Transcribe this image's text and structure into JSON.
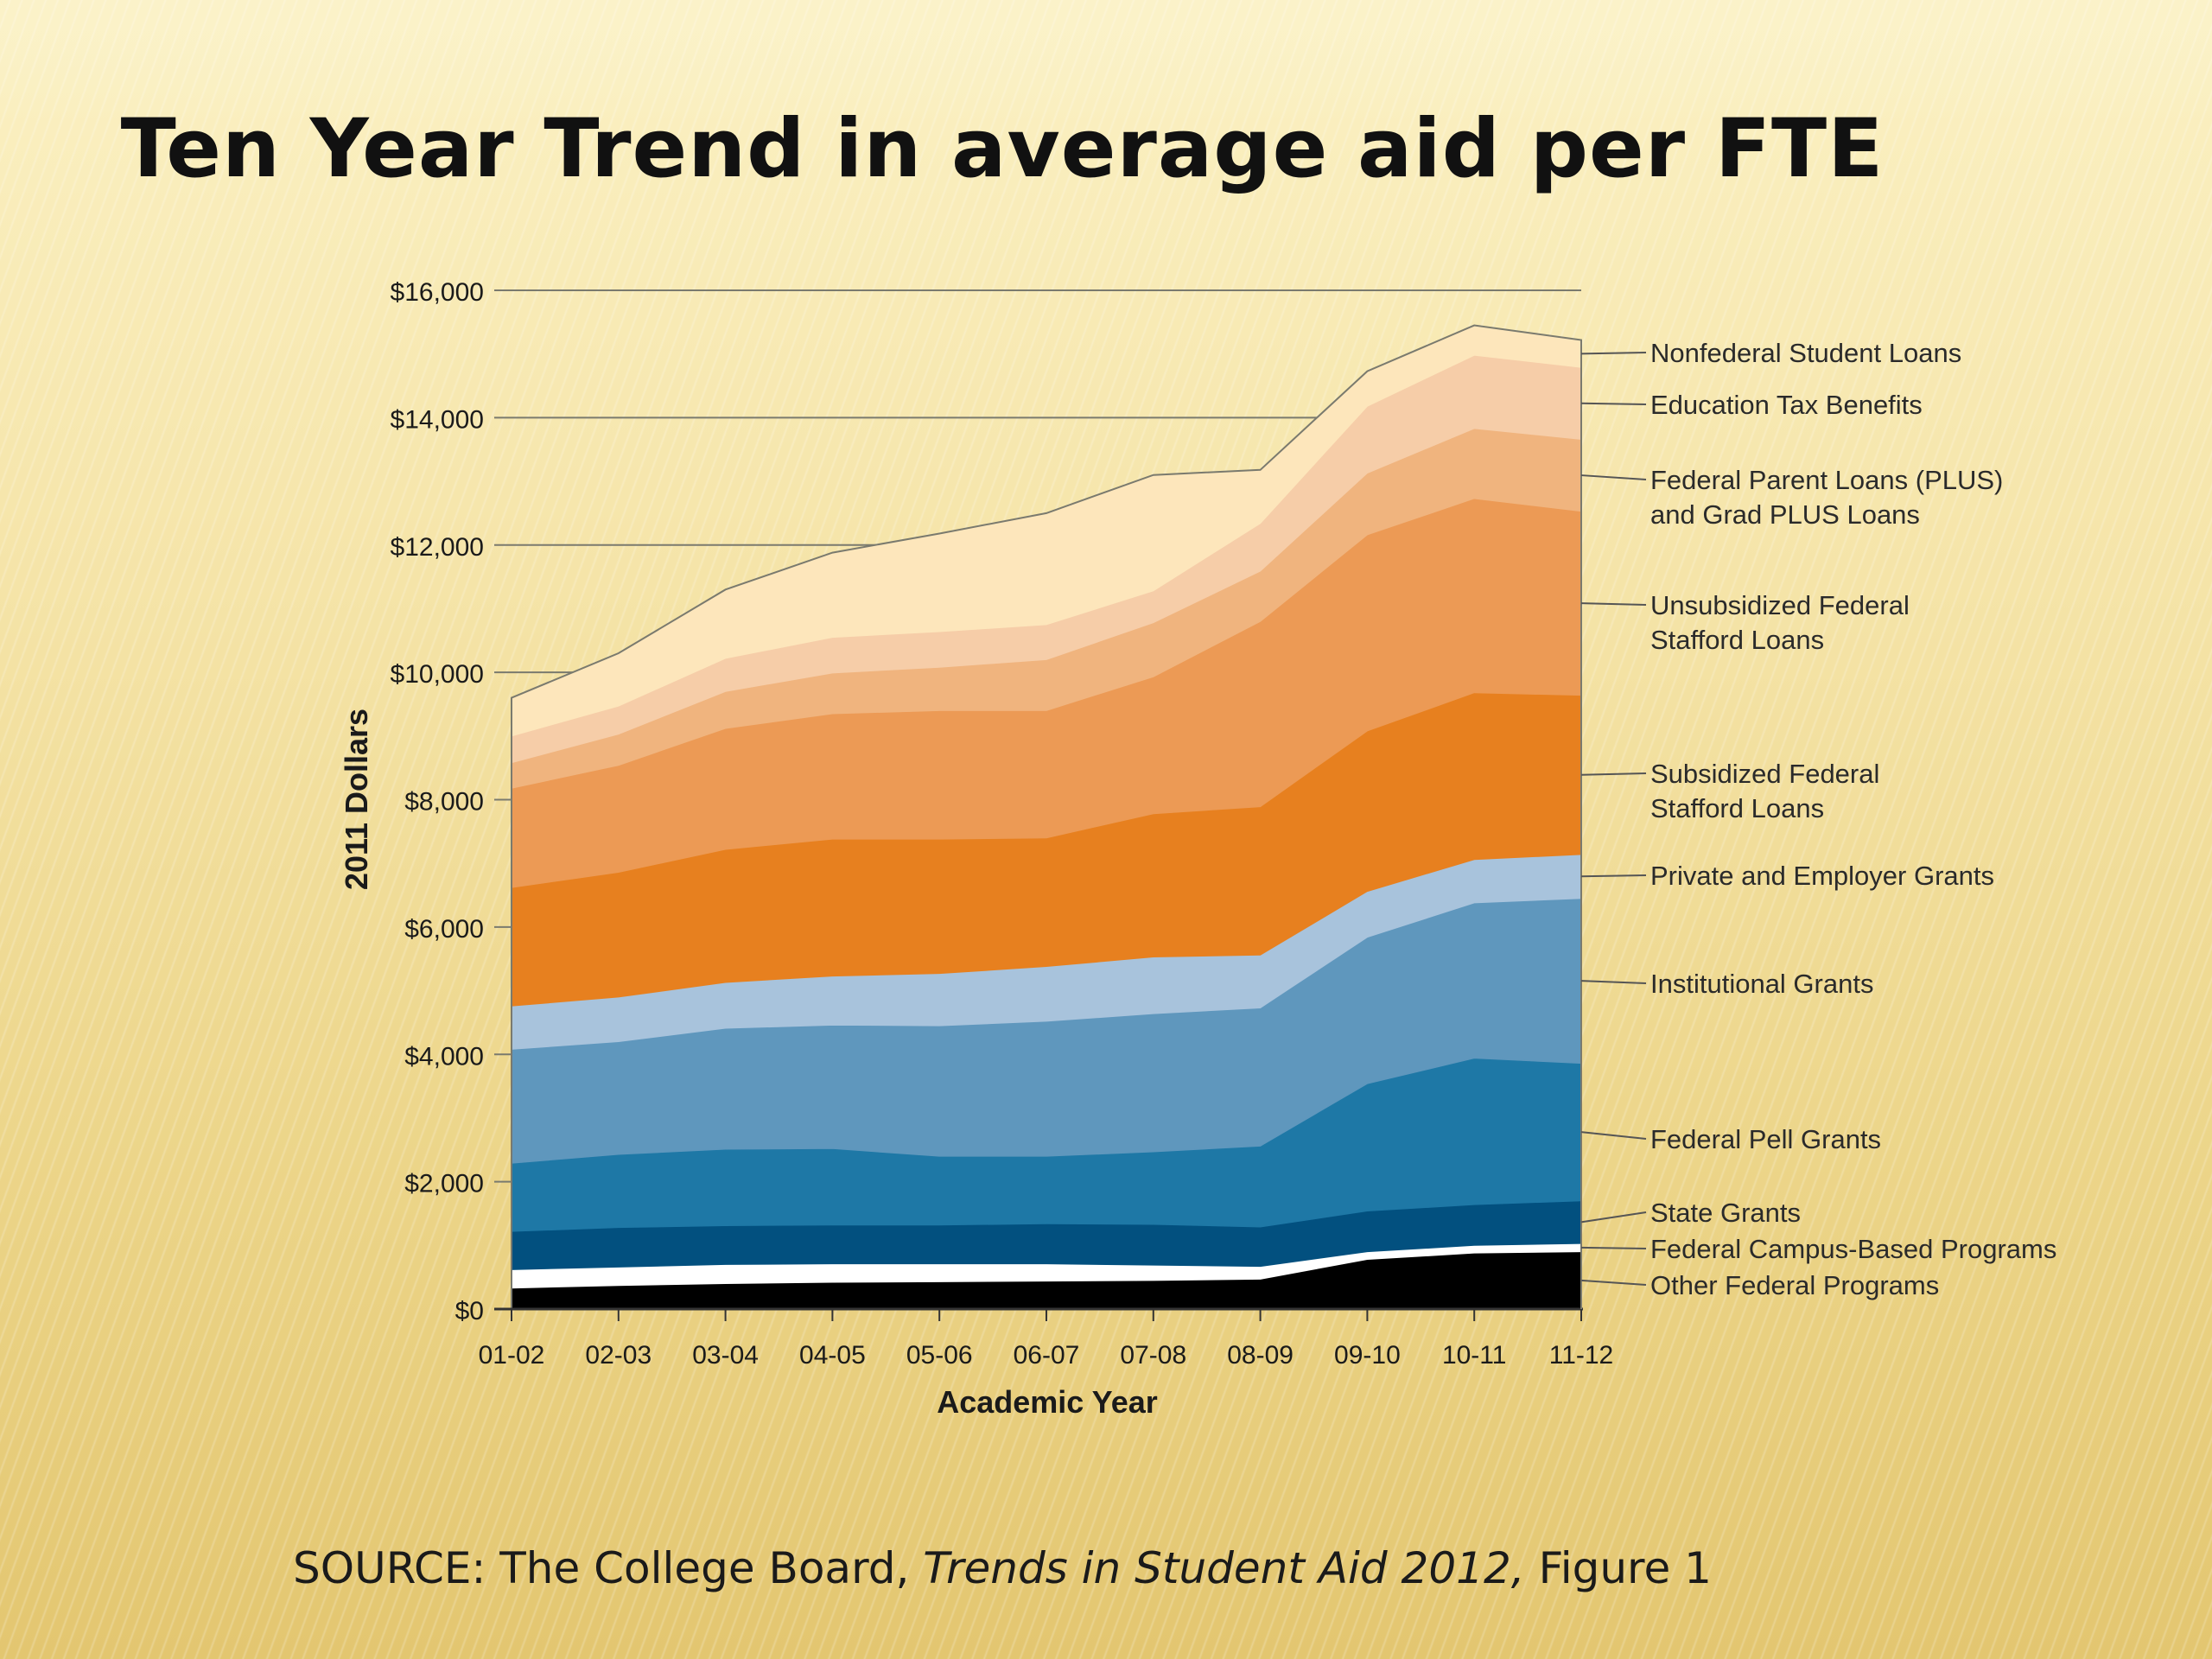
{
  "slide": {
    "title": "Ten Year Trend in average aid per FTE",
    "source_prefix": "SOURCE: The College Board, ",
    "source_italic": "Trends in Student Aid 2012,",
    "source_suffix": " Figure 1"
  },
  "chart_data": {
    "type": "area",
    "stacked": true,
    "x": [
      "01-02",
      "02-03",
      "03-04",
      "04-05",
      "05-06",
      "06-07",
      "07-08",
      "08-09",
      "09-10",
      "10-11",
      "11-12"
    ],
    "xlabel": "Academic Year",
    "ylabel": "2011 Dollars",
    "ylim": [
      0,
      16000
    ],
    "yticks": [
      0,
      2000,
      4000,
      6000,
      8000,
      10000,
      12000,
      14000,
      16000
    ],
    "ytick_labels": [
      "$0",
      "$2,000",
      "$4,000",
      "$6,000",
      "$8,000",
      "$10,000",
      "$12,000",
      "$14,000",
      "$16,000"
    ],
    "grid": "horizontal",
    "legend_placement": "right",
    "series": [
      {
        "name": "Other Federal Programs",
        "label_lines": [
          "Other Federal Programs"
        ],
        "color": "#000000",
        "values": [
          330,
          370,
          400,
          420,
          430,
          440,
          450,
          470,
          780,
          880,
          900
        ]
      },
      {
        "name": "Federal Campus-Based Programs",
        "label_lines": [
          "Federal Campus-Based Programs"
        ],
        "color": "#ffffff",
        "values": [
          290,
          290,
          300,
          290,
          280,
          270,
          240,
          200,
          120,
          120,
          130
        ]
      },
      {
        "name": "State Grants",
        "label_lines": [
          "State Grants"
        ],
        "color": "#02507f",
        "values": [
          600,
          620,
          610,
          610,
          610,
          630,
          640,
          620,
          640,
          640,
          670
        ]
      },
      {
        "name": "Federal Pell Grants",
        "label_lines": [
          "Federal Pell Grants"
        ],
        "color": "#1e78a6",
        "values": [
          1070,
          1150,
          1200,
          1200,
          1080,
          1060,
          1140,
          1270,
          2000,
          2300,
          2160
        ]
      },
      {
        "name": "Institutional Grants",
        "label_lines": [
          "Institutional Grants"
        ],
        "color": "#5f97bd",
        "values": [
          1790,
          1770,
          1900,
          1940,
          2050,
          2120,
          2170,
          2170,
          2300,
          2440,
          2590
        ]
      },
      {
        "name": "Private and Employer Grants",
        "label_lines": [
          "Private and Employer Grants"
        ],
        "color": "#a8c3dc",
        "values": [
          680,
          700,
          720,
          770,
          820,
          860,
          890,
          830,
          720,
          680,
          690
        ]
      },
      {
        "name": "Subsidized Federal Stafford Loans",
        "label_lines": [
          "Subsidized Federal",
          "Stafford Loans"
        ],
        "color": "#e7801f",
        "values": [
          1860,
          1960,
          2090,
          2150,
          2110,
          2020,
          2250,
          2330,
          2520,
          2620,
          2500
        ]
      },
      {
        "name": "Unsubsidized Federal Stafford Loans",
        "label_lines": [
          "Unsubsidized Federal",
          "Stafford Loans"
        ],
        "color": "#ec9a55",
        "values": [
          1560,
          1680,
          1900,
          1970,
          2020,
          2000,
          2150,
          2910,
          3080,
          3050,
          2890
        ]
      },
      {
        "name": "Federal Parent Loans (PLUS) and Grad PLUS Loans",
        "label_lines": [
          "Federal Parent Loans (PLUS)",
          "and Grad PLUS Loans"
        ],
        "color": "#f0b47e",
        "values": [
          400,
          490,
          580,
          640,
          680,
          800,
          850,
          790,
          970,
          1100,
          1130
        ]
      },
      {
        "name": "Education Tax Benefits",
        "label_lines": [
          "Education Tax Benefits"
        ],
        "color": "#f6cda8",
        "values": [
          420,
          440,
          520,
          560,
          560,
          550,
          500,
          750,
          1050,
          1150,
          1130
        ]
      },
      {
        "name": "Nonfederal Student Loans",
        "label_lines": [
          "Nonfederal Student Loans"
        ],
        "color": "#fde6bb",
        "values": [
          600,
          830,
          1080,
          1330,
          1540,
          1750,
          1820,
          840,
          550,
          470,
          430
        ]
      }
    ]
  }
}
